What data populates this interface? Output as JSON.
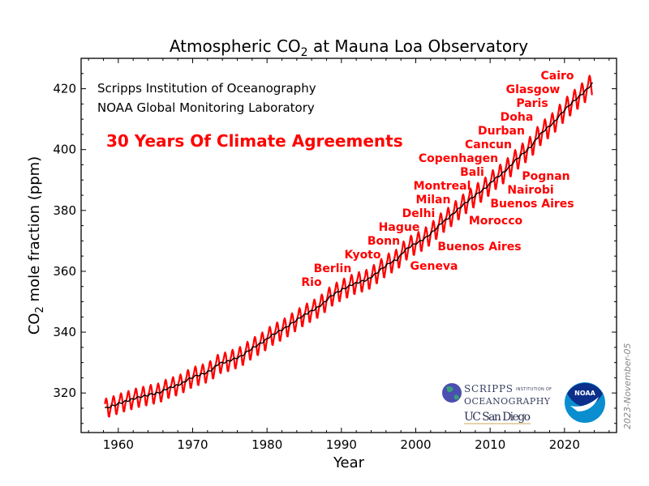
{
  "chart_data": {
    "type": "line",
    "title": "Atmospheric CO",
    "title_sub": "2",
    "title_rest": " at Mauna Loa Observatory",
    "xlabel": "Year",
    "ylabel_pre": "CO",
    "ylabel_sub": "2",
    "ylabel_rest": " mole fraction (ppm)",
    "xlim": [
      1955,
      2027
    ],
    "ylim": [
      307,
      430
    ],
    "xticks": [
      1960,
      1970,
      1980,
      1990,
      2000,
      2010,
      2020
    ],
    "yticks": [
      320,
      340,
      360,
      380,
      400,
      420
    ],
    "grid": false,
    "series": [
      {
        "color": "#ff0000",
        "kind": "monthly",
        "start": 1958.2,
        "end": 2023.8,
        "seasonal_cycle_ppm": [
          0.1,
          0.7,
          1.4,
          2.6,
          3.1,
          2.4,
          0.9,
          -1.2,
          -3.0,
          -3.2,
          -2.0,
          -0.9
        ]
      },
      {
        "color": "#000000",
        "kind": "trend",
        "years": [
          1958,
          1959,
          1960,
          1961,
          1962,
          1963,
          1964,
          1965,
          1966,
          1967,
          1968,
          1969,
          1970,
          1971,
          1972,
          1973,
          1974,
          1975,
          1976,
          1977,
          1978,
          1979,
          1980,
          1981,
          1982,
          1983,
          1984,
          1985,
          1986,
          1987,
          1988,
          1989,
          1990,
          1991,
          1992,
          1993,
          1994,
          1995,
          1996,
          1997,
          1998,
          1999,
          2000,
          2001,
          2002,
          2003,
          2004,
          2005,
          2006,
          2007,
          2008,
          2009,
          2010,
          2011,
          2012,
          2013,
          2014,
          2015,
          2016,
          2017,
          2018,
          2019,
          2020,
          2021,
          2022,
          2023
        ],
        "values": [
          315.2,
          315.98,
          316.91,
          317.64,
          318.45,
          318.99,
          319.62,
          320.04,
          321.37,
          322.18,
          323.05,
          324.62,
          325.68,
          326.32,
          327.46,
          329.68,
          330.19,
          331.13,
          332.03,
          333.84,
          335.41,
          336.84,
          338.76,
          340.12,
          341.48,
          343.15,
          344.87,
          346.35,
          347.61,
          349.31,
          351.69,
          353.2,
          354.45,
          355.7,
          356.54,
          357.21,
          358.96,
          360.97,
          362.74,
          363.88,
          366.84,
          368.54,
          369.71,
          371.32,
          373.45,
          375.98,
          377.7,
          379.98,
          382.09,
          384.02,
          385.83,
          387.64,
          390.1,
          391.85,
          394.06,
          396.74,
          398.81,
          401.01,
          404.41,
          406.76,
          408.72,
          411.66,
          414.24,
          416.45,
          418.56,
          421.08
        ]
      }
    ],
    "credits": [
      "Scripps Institution of Oceanography",
      "NOAA Global Monitoring Laboratory"
    ],
    "headline": "30 Years Of Climate Agreements",
    "annotations": [
      "Rio",
      "Berlin",
      "Kyoto",
      "Bonn",
      "Hague",
      "Delhi",
      "Milan",
      "Montreal",
      "Bali",
      "Copenhagen",
      "Cancun",
      "Durban",
      "Doha",
      "Paris",
      "Glasgow",
      "Cairo",
      "Geneva",
      "Buenos Aires",
      "Morocco",
      "Buenos Aires",
      "Nairobi",
      "Pognan"
    ],
    "annotation_color": "#ff0000",
    "date_stamp": "2023-November-05",
    "logos": {
      "scripps": [
        "SCRIPPS",
        "INSTITUTION OF",
        "OCEANOGRAPHY",
        "UC San Diego"
      ],
      "noaa": "NOAA"
    }
  }
}
